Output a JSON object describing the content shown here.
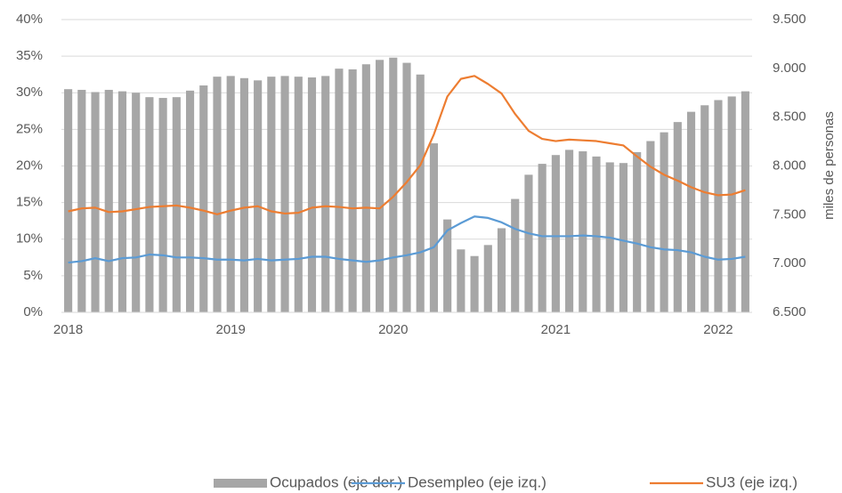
{
  "chart_data": {
    "type": "bar",
    "categories": [
      "2018",
      null,
      null,
      null,
      null,
      null,
      null,
      null,
      null,
      null,
      null,
      null,
      "2019",
      null,
      null,
      null,
      null,
      null,
      null,
      null,
      null,
      null,
      null,
      null,
      "2020",
      null,
      null,
      null,
      null,
      null,
      null,
      null,
      null,
      null,
      null,
      null,
      "2021",
      null,
      null,
      null,
      null,
      null,
      null,
      null,
      null,
      null,
      null,
      null,
      "2022",
      null,
      null
    ],
    "series": [
      {
        "name": "Ocupados (eje der.)",
        "type": "bar",
        "axis": "y2",
        "color": "#a6a6a6",
        "values": [
          8787,
          8780,
          8757,
          8780,
          8765,
          8750,
          8705,
          8697,
          8705,
          8772,
          8825,
          8915,
          8922,
          8900,
          8877,
          8915,
          8922,
          8915,
          8907,
          8922,
          8997,
          8990,
          9042,
          9087,
          9110,
          9057,
          8937,
          8232,
          7452,
          7145,
          7077,
          7190,
          7362,
          7662,
          7910,
          8022,
          8112,
          8165,
          8150,
          8097,
          8037,
          8030,
          8142,
          8255,
          8345,
          8450,
          8555,
          8622,
          8675,
          8712,
          8765
        ]
      },
      {
        "name": "Desempleo (eje izq.)",
        "type": "line",
        "axis": "y",
        "color": "#5b9bd5",
        "values": [
          6.8,
          7.0,
          7.4,
          7.0,
          7.4,
          7.5,
          7.9,
          7.8,
          7.5,
          7.5,
          7.4,
          7.2,
          7.2,
          7.1,
          7.3,
          7.1,
          7.2,
          7.3,
          7.6,
          7.6,
          7.3,
          7.1,
          6.9,
          7.1,
          7.5,
          7.8,
          8.2,
          8.9,
          11.2,
          12.2,
          13.1,
          12.9,
          12.3,
          11.4,
          10.8,
          10.4,
          10.4,
          10.4,
          10.5,
          10.4,
          10.2,
          9.8,
          9.4,
          8.9,
          8.6,
          8.5,
          8.2,
          7.6,
          7.2,
          7.3,
          7.6
        ]
      },
      {
        "name": "SU3 (eje izq.)",
        "type": "line",
        "axis": "y",
        "color": "#ed7d31",
        "values": [
          13.8,
          14.2,
          14.3,
          13.7,
          13.8,
          14.1,
          14.4,
          14.5,
          14.6,
          14.3,
          13.9,
          13.4,
          13.9,
          14.3,
          14.5,
          13.8,
          13.5,
          13.6,
          14.3,
          14.5,
          14.4,
          14.2,
          14.3,
          14.2,
          15.8,
          17.8,
          20.1,
          24.3,
          29.5,
          31.9,
          32.3,
          31.2,
          29.9,
          27.1,
          24.8,
          23.7,
          23.4,
          23.6,
          23.5,
          23.4,
          23.1,
          22.8,
          21.3,
          19.9,
          18.8,
          18.0,
          17.1,
          16.4,
          16.0,
          16.1,
          16.7
        ]
      }
    ],
    "ylim": [
      0,
      40
    ],
    "yticks": [
      {
        "value": 0,
        "label": "0%"
      },
      {
        "value": 5,
        "label": "5%"
      },
      {
        "value": 10,
        "label": "10%"
      },
      {
        "value": 15,
        "label": "15%"
      },
      {
        "value": 20,
        "label": "20%"
      },
      {
        "value": 25,
        "label": "25%"
      },
      {
        "value": 30,
        "label": "30%"
      },
      {
        "value": 35,
        "label": "35%"
      },
      {
        "value": 40,
        "label": "40%"
      }
    ],
    "y2lim": [
      6500,
      9500
    ],
    "y2ticks": [
      {
        "value": 6500,
        "label": "6.500"
      },
      {
        "value": 7000,
        "label": "7.000"
      },
      {
        "value": 7500,
        "label": "7.500"
      },
      {
        "value": 8000,
        "label": "8.000"
      },
      {
        "value": 8500,
        "label": "8.500"
      },
      {
        "value": 9000,
        "label": "9.000"
      },
      {
        "value": 9500,
        "label": "9.500"
      }
    ],
    "y2label": "miles de personas",
    "grid": true,
    "legend": "bottom"
  }
}
